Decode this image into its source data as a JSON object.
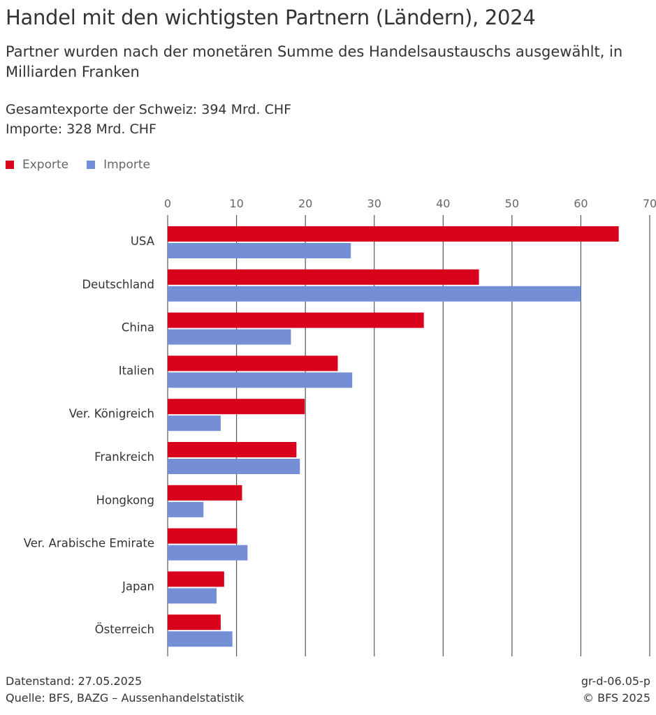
{
  "header": {
    "title": "Handel mit den wichtigsten Partnern (Ländern), 2024",
    "subtitle": "Partner wurden nach der monetären Summe des Handelsaustauschs ausgewählt, in Milliarden Franken",
    "note_exports": "Gesamtexporte der Schweiz: 394 Mrd. CHF",
    "note_imports": "Importe: 328 Mrd. CHF"
  },
  "legend": {
    "exports_label": "Exporte",
    "imports_label": "Importe"
  },
  "colors": {
    "exports": "#d9001b",
    "imports": "#758fd6",
    "grid": "#555555"
  },
  "chart_data": {
    "type": "bar",
    "orientation": "horizontal",
    "categories": [
      "USA",
      "Deutschland",
      "China",
      "Italien",
      "Ver. Königreich",
      "Frankreich",
      "Hongkong",
      "Ver. Arabische Emirate",
      "Japan",
      "Österreich"
    ],
    "series": [
      {
        "name": "Exporte",
        "values": [
          65.5,
          45.2,
          37.2,
          24.7,
          19.9,
          18.7,
          10.8,
          10.1,
          8.2,
          7.7
        ]
      },
      {
        "name": "Importe",
        "values": [
          26.6,
          60.0,
          17.9,
          26.8,
          7.7,
          19.2,
          5.2,
          11.6,
          7.1,
          9.4
        ]
      }
    ],
    "xlim": [
      0,
      70
    ],
    "xticks": [
      0,
      10,
      20,
      30,
      40,
      50,
      60,
      70
    ],
    "grid": true,
    "legend_position": "top-left"
  },
  "footer": {
    "data_date": "Datenstand: 27.05.2025",
    "source": "Quelle: BFS, BAZG – Aussenhandelstatistik",
    "code": "gr-d-06.05-p",
    "copyright": "© BFS 2025"
  }
}
